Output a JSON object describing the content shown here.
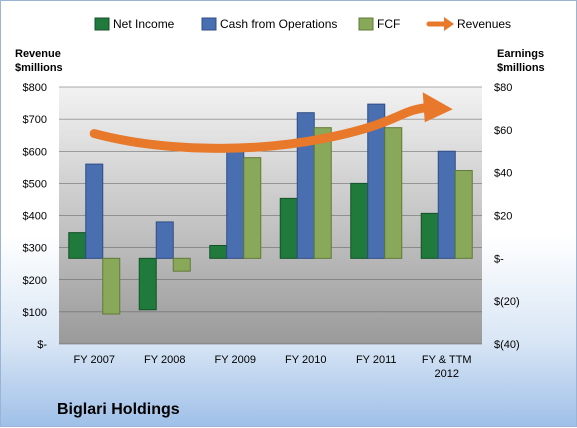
{
  "company_title": "Biglari Holdings",
  "chart_data": {
    "type": "bar",
    "categories": [
      "FY 2007",
      "FY 2008",
      "FY 2009",
      "FY 2010",
      "FY 2011",
      "FY & TTM 2012"
    ],
    "left_axis": {
      "title_line1": "Revenue",
      "title_line2": "$millions",
      "ylim": [
        0,
        800
      ],
      "ticks": [
        0,
        100,
        200,
        300,
        400,
        500,
        600,
        700,
        800
      ],
      "tick_labels": [
        "$-",
        "$100",
        "$200",
        "$300",
        "$400",
        "$500",
        "$600",
        "$700",
        "$800"
      ]
    },
    "right_axis": {
      "title_line1": "Earnings",
      "title_line2": "$millions",
      "ylim": [
        -40,
        80
      ],
      "ticks": [
        -40,
        -20,
        0,
        20,
        40,
        60,
        80
      ],
      "tick_labels": [
        "$(40)",
        "$(20)",
        "$-",
        "$20",
        "$40",
        "$60",
        "$80"
      ]
    },
    "series": [
      {
        "name": "Net Income",
        "axis": "right",
        "color": "#1f7a3c",
        "values": [
          12,
          -24,
          6,
          28,
          35,
          21
        ]
      },
      {
        "name": "Cash from Operations",
        "axis": "right",
        "color": "#4a6fb0",
        "values": [
          44,
          17,
          53,
          68,
          72,
          50
        ]
      },
      {
        "name": "FCF",
        "axis": "right",
        "color": "#8aa85a",
        "values": [
          -26,
          -6,
          47,
          61,
          61,
          41
        ]
      }
    ],
    "trend": {
      "name": "Revenues",
      "color": "#e8782a"
    },
    "legend_position": "top",
    "grid": true
  }
}
